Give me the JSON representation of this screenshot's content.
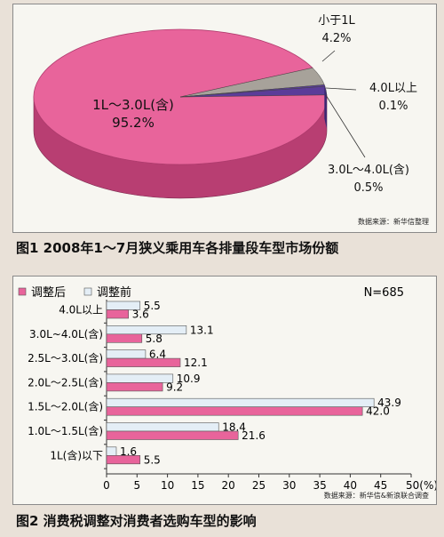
{
  "figure1": {
    "caption": "图1  2008年1～7月狭义乘用车各排量段车型市场份额",
    "source": "数据来源：新华信整理"
  },
  "figure2": {
    "caption": "图2  消费税调整对消费者选购车型的影响",
    "source": "数据来源：新华信&新浪联合调查",
    "sample": "N=685"
  },
  "colors": {
    "pink": "#e8649b",
    "pink_dark": "#b83e72",
    "light_blue": "#e4eef6",
    "purple": "#5b3c99",
    "grey": "#a7a29a"
  },
  "chart_data": [
    {
      "type": "pie",
      "title": "2008年1～7月狭义乘用车各排量段车型市场份额",
      "slices": [
        {
          "label": "1L～3.0L(含)",
          "value": 95.2,
          "value_label": "95.2%",
          "color": "#e8649b"
        },
        {
          "label": "小于1L",
          "value": 4.2,
          "value_label": "4.2%",
          "color": "#a7a29a"
        },
        {
          "label": "4.0L以上",
          "value": 0.1,
          "value_label": "0.1%",
          "color": "#5b3c99"
        },
        {
          "label": "3.0L～4.0L(含)",
          "value": 0.5,
          "value_label": "0.5%",
          "color": "#5b3c99"
        }
      ]
    },
    {
      "type": "bar",
      "orientation": "horizontal",
      "title": "消费税调整对消费者选购车型的影响",
      "categories": [
        "4.0L以上",
        "3.0L~4.0L(含)",
        "2.5L～3.0L(含)",
        "2.0L～2.5L(含)",
        "1.5L～2.0L(含)",
        "1.0L～1.5L(含)",
        "1L(含)以下"
      ],
      "series": [
        {
          "name": "调整前",
          "values": [
            5.5,
            13.1,
            6.4,
            10.9,
            43.9,
            18.4,
            1.6
          ],
          "labels": [
            "5.5",
            "13.1",
            "6.4",
            "10.9",
            "43.9",
            "18.4",
            "1.6"
          ],
          "color": "#e4eef6"
        },
        {
          "name": "调整后",
          "values": [
            3.6,
            5.8,
            12.1,
            9.2,
            42.0,
            21.6,
            5.5
          ],
          "labels": [
            "3.6",
            "5.8",
            "12.1",
            "9.2",
            "42.0",
            "21.6",
            "5.5"
          ],
          "color": "#e8649b"
        }
      ],
      "legend_order": [
        "调整后",
        "调整前"
      ],
      "xlim": [
        0,
        50
      ],
      "x_ticks": [
        "0",
        "5",
        "10",
        "15",
        "20",
        "25",
        "30",
        "35",
        "40",
        "45",
        "50(%)"
      ],
      "grid": false,
      "legend": "top-left"
    }
  ]
}
